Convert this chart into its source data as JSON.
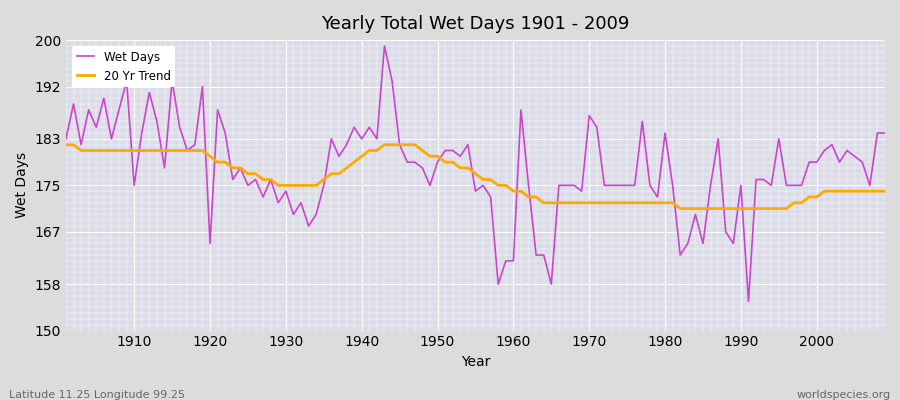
{
  "title": "Yearly Total Wet Days 1901 - 2009",
  "xlabel": "Year",
  "ylabel": "Wet Days",
  "subtitle": "Latitude 11.25 Longitude 99.25",
  "watermark": "worldspecies.org",
  "ylim": [
    150,
    200
  ],
  "yticks": [
    150,
    158,
    167,
    175,
    183,
    192,
    200
  ],
  "line_color": "#cc44cc",
  "trend_color": "#ffaa00",
  "bg_color": "#dcdcdc",
  "plot_bg_color": "#dcdce8",
  "years": [
    1901,
    1902,
    1903,
    1904,
    1905,
    1906,
    1907,
    1908,
    1909,
    1910,
    1911,
    1912,
    1913,
    1914,
    1915,
    1916,
    1917,
    1918,
    1919,
    1920,
    1921,
    1922,
    1923,
    1924,
    1925,
    1926,
    1927,
    1928,
    1929,
    1930,
    1931,
    1932,
    1933,
    1934,
    1935,
    1936,
    1937,
    1938,
    1939,
    1940,
    1941,
    1942,
    1943,
    1944,
    1945,
    1946,
    1947,
    1948,
    1949,
    1950,
    1951,
    1952,
    1953,
    1954,
    1955,
    1956,
    1957,
    1958,
    1959,
    1960,
    1961,
    1962,
    1963,
    1964,
    1965,
    1966,
    1967,
    1968,
    1969,
    1970,
    1971,
    1972,
    1973,
    1974,
    1975,
    1976,
    1977,
    1978,
    1979,
    1980,
    1981,
    1982,
    1983,
    1984,
    1985,
    1986,
    1987,
    1988,
    1989,
    1990,
    1991,
    1992,
    1993,
    1994,
    1995,
    1996,
    1997,
    1998,
    1999,
    2000,
    2001,
    2002,
    2003,
    2004,
    2005,
    2006,
    2007,
    2008,
    2009
  ],
  "wet_days": [
    183,
    189,
    182,
    188,
    185,
    190,
    183,
    188,
    193,
    175,
    184,
    191,
    186,
    178,
    193,
    185,
    181,
    182,
    192,
    165,
    188,
    184,
    176,
    178,
    175,
    176,
    173,
    176,
    172,
    174,
    170,
    172,
    168,
    170,
    175,
    183,
    180,
    182,
    185,
    183,
    185,
    183,
    199,
    193,
    182,
    179,
    179,
    178,
    175,
    179,
    181,
    181,
    180,
    182,
    174,
    175,
    173,
    158,
    162,
    162,
    188,
    175,
    163,
    163,
    158,
    175,
    175,
    175,
    174,
    187,
    185,
    175,
    175,
    175,
    175,
    175,
    186,
    175,
    173,
    184,
    175,
    163,
    165,
    170,
    165,
    175,
    183,
    167,
    165,
    175,
    155,
    176,
    176,
    175,
    183,
    175,
    175,
    175,
    179,
    179,
    181,
    182,
    179,
    181,
    180,
    179,
    175,
    184,
    184
  ],
  "trend": [
    182,
    182,
    181,
    181,
    181,
    181,
    181,
    181,
    181,
    181,
    181,
    181,
    181,
    181,
    181,
    181,
    181,
    181,
    181,
    180,
    179,
    179,
    178,
    178,
    177,
    177,
    176,
    176,
    175,
    175,
    175,
    175,
    175,
    175,
    176,
    177,
    177,
    178,
    179,
    180,
    181,
    181,
    182,
    182,
    182,
    182,
    182,
    181,
    180,
    180,
    179,
    179,
    178,
    178,
    177,
    176,
    176,
    175,
    175,
    174,
    174,
    173,
    173,
    172,
    172,
    172,
    172,
    172,
    172,
    172,
    172,
    172,
    172,
    172,
    172,
    172,
    172,
    172,
    172,
    172,
    172,
    171,
    171,
    171,
    171,
    171,
    171,
    171,
    171,
    171,
    171,
    171,
    171,
    171,
    171,
    171,
    172,
    172,
    173,
    173,
    174,
    174,
    174,
    174,
    174,
    174,
    174,
    174,
    174
  ]
}
